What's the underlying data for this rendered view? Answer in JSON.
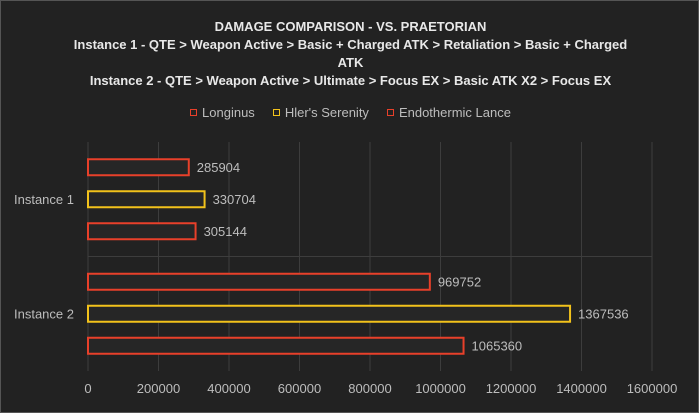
{
  "chart_data": {
    "type": "bar",
    "orientation": "horizontal",
    "title_lines": [
      "DAMAGE COMPARISON - VS. PRAETORIAN",
      "Instance 1 - QTE > Weapon Active > Basic + Charged ATK > Retaliation > Basic + Charged",
      "ATK",
      "Instance 2 - QTE > Weapon Active > Ultimate > Focus EX > Basic ATK X2 > Focus EX"
    ],
    "categories": [
      "Instance 1",
      "Instance 2"
    ],
    "series": [
      {
        "name": "Longinus",
        "color": "#e8402a",
        "values": [
          285904,
          969752
        ]
      },
      {
        "name": "Hler's Serenity",
        "color": "#f2c21b",
        "values": [
          330704,
          1367536
        ]
      },
      {
        "name": "Endothermic Lance",
        "color": "#e8402a",
        "values": [
          305144,
          1065360
        ]
      }
    ],
    "xlim": [
      0,
      1600000
    ],
    "xticks": [
      "0",
      "200000",
      "400000",
      "600000",
      "800000",
      "1000000",
      "1200000",
      "1400000",
      "1600000"
    ],
    "legend_position": "top",
    "grid": true
  }
}
